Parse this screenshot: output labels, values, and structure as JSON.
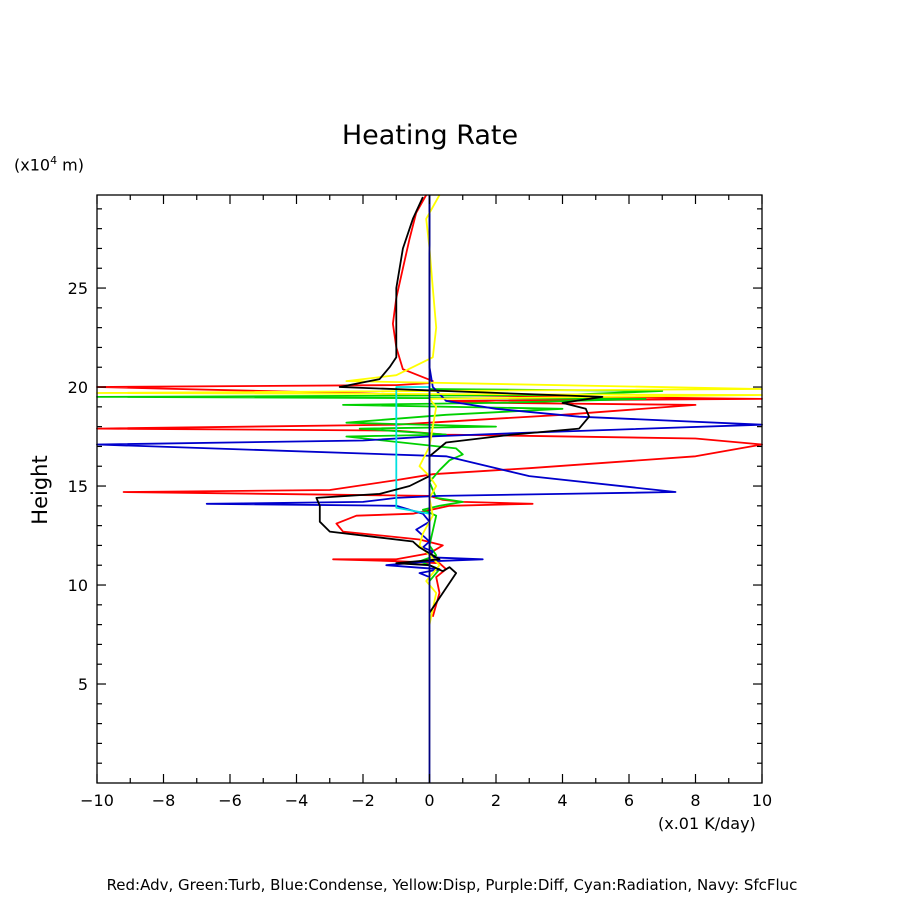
{
  "chart_data": {
    "type": "line",
    "title": "Heating Rate",
    "xlabel": "(x.01 K/day)",
    "ylabel": "Height",
    "y_unit_base": "(x10",
    "y_unit_exp": "4",
    "y_unit_tail": " m)",
    "xlim": [
      -10,
      10
    ],
    "ylim": [
      0,
      29.7
    ],
    "x_ticks": [
      -10,
      -8,
      -6,
      -4,
      -2,
      0,
      2,
      4,
      6,
      8,
      10
    ],
    "x_tick_labels": [
      "−10",
      "−8",
      "−6",
      "−4",
      "−2",
      "0",
      "2",
      "4",
      "6",
      "8",
      "10"
    ],
    "y_ticks": [
      5,
      10,
      15,
      20,
      25
    ],
    "y_tick_labels": [
      "5",
      "10",
      "15",
      "20",
      "25"
    ],
    "grid": false,
    "legend_text": "Red:Adv, Green:Turb, Blue:Condense, Yellow:Disp, Purple:Diff, Cyan:Radiation, Navy: SfcFluc",
    "series": [
      {
        "name": "Adv",
        "color": "#ff0000",
        "points": [
          [
            0.1,
            8.4
          ],
          [
            0.3,
            9.6
          ],
          [
            0.2,
            10.4
          ],
          [
            0.5,
            10.8
          ],
          [
            0.3,
            11.1
          ],
          [
            -0.9,
            11.2
          ],
          [
            -2.9,
            11.3
          ],
          [
            -1.0,
            11.3
          ],
          [
            0.0,
            11.6
          ],
          [
            0.4,
            12.0
          ],
          [
            -0.3,
            12.3
          ],
          [
            -2.6,
            12.7
          ],
          [
            -2.8,
            13.1
          ],
          [
            -2.2,
            13.5
          ],
          [
            -0.5,
            13.6
          ],
          [
            0.6,
            14.0
          ],
          [
            3.1,
            14.1
          ],
          [
            1.0,
            14.2
          ],
          [
            0.4,
            14.3
          ],
          [
            0.0,
            14.5
          ],
          [
            -9.2,
            14.7
          ],
          [
            -3.0,
            14.8
          ],
          [
            -1.0,
            15.3
          ],
          [
            0.1,
            15.6
          ],
          [
            3.0,
            15.9
          ],
          [
            8.0,
            16.5
          ],
          [
            10.0,
            17.1
          ],
          [
            8.0,
            17.4
          ],
          [
            0.5,
            17.6
          ],
          [
            -1.0,
            17.8
          ],
          [
            -10.0,
            17.9
          ],
          [
            -1.0,
            18.1
          ],
          [
            2.0,
            18.4
          ],
          [
            4.0,
            18.6
          ],
          [
            8.0,
            19.1
          ],
          [
            2.0,
            19.2
          ],
          [
            0.5,
            19.3
          ],
          [
            10.0,
            19.4
          ],
          [
            0.0,
            19.6
          ],
          [
            -10.0,
            20.0
          ],
          [
            -1.0,
            20.1
          ],
          [
            0.0,
            20.2
          ],
          [
            0.1,
            20.3
          ],
          [
            -0.8,
            20.9
          ],
          [
            -1.0,
            22.0
          ],
          [
            -1.1,
            23.2
          ],
          [
            -1.0,
            24.5
          ],
          [
            -0.8,
            26.0
          ],
          [
            -0.6,
            27.5
          ],
          [
            -0.4,
            28.8
          ],
          [
            -0.1,
            29.7
          ]
        ]
      },
      {
        "name": "Turb",
        "color": "#00d000",
        "points": [
          [
            0.0,
            10.2
          ],
          [
            0.3,
            10.8
          ],
          [
            -0.3,
            11.2
          ],
          [
            0.2,
            11.5
          ],
          [
            0.0,
            12.0
          ],
          [
            0.2,
            13.5
          ],
          [
            -0.2,
            13.8
          ],
          [
            0.3,
            14.0
          ],
          [
            1.0,
            14.2
          ],
          [
            0.2,
            14.4
          ],
          [
            0.0,
            15.2
          ],
          [
            0.3,
            15.8
          ],
          [
            0.6,
            16.3
          ],
          [
            1.0,
            16.6
          ],
          [
            0.8,
            16.9
          ],
          [
            -2.5,
            17.5
          ],
          [
            0.5,
            17.6
          ],
          [
            -2.1,
            17.9
          ],
          [
            2.0,
            18.0
          ],
          [
            -2.5,
            18.2
          ],
          [
            0.5,
            18.6
          ],
          [
            4.0,
            18.9
          ],
          [
            -2.6,
            19.1
          ],
          [
            2.0,
            19.2
          ],
          [
            6.5,
            19.4
          ],
          [
            -10.0,
            19.5
          ],
          [
            4.0,
            19.6
          ],
          [
            7.0,
            19.8
          ],
          [
            0.0,
            19.9
          ]
        ]
      },
      {
        "name": "Condense",
        "color": "#0000cc",
        "points": [
          [
            0.0,
            10.4
          ],
          [
            -0.3,
            10.6
          ],
          [
            0.3,
            10.8
          ],
          [
            -1.3,
            11.0
          ],
          [
            0.0,
            11.2
          ],
          [
            1.6,
            11.3
          ],
          [
            0.0,
            11.4
          ],
          [
            0.1,
            11.7
          ],
          [
            -0.2,
            11.9
          ],
          [
            0.0,
            12.2
          ],
          [
            -0.4,
            12.8
          ],
          [
            0.0,
            13.2
          ],
          [
            -0.2,
            13.6
          ],
          [
            -1.0,
            14.0
          ],
          [
            -6.7,
            14.1
          ],
          [
            -2.0,
            14.2
          ],
          [
            -1.0,
            14.4
          ],
          [
            0.3,
            14.5
          ],
          [
            4.0,
            14.6
          ],
          [
            7.4,
            14.7
          ],
          [
            3.0,
            15.5
          ],
          [
            0.5,
            16.5
          ],
          [
            -10.0,
            17.1
          ],
          [
            -2.0,
            17.3
          ],
          [
            0.0,
            17.5
          ],
          [
            3.0,
            17.7
          ],
          [
            10.0,
            18.1
          ],
          [
            4.5,
            18.5
          ],
          [
            2.0,
            18.9
          ],
          [
            0.5,
            19.3
          ],
          [
            0.1,
            20.0
          ],
          [
            0.0,
            21.0
          ],
          [
            0.0,
            29.7
          ]
        ]
      },
      {
        "name": "Disp",
        "color": "#ffff00",
        "points": [
          [
            0.0,
            8.0
          ],
          [
            0.2,
            9.6
          ],
          [
            -0.1,
            10.2
          ],
          [
            0.3,
            11.0
          ],
          [
            -0.3,
            12.0
          ],
          [
            -0.2,
            12.6
          ],
          [
            0.1,
            13.5
          ],
          [
            0.0,
            14.4
          ],
          [
            0.2,
            15.0
          ],
          [
            0.0,
            15.5
          ],
          [
            -0.3,
            16.0
          ],
          [
            0.0,
            17.0
          ],
          [
            0.2,
            19.0
          ],
          [
            0.0,
            19.4
          ],
          [
            10.0,
            19.6
          ],
          [
            -10.0,
            19.7
          ],
          [
            10.0,
            19.9
          ],
          [
            -2.5,
            20.3
          ],
          [
            -1.0,
            20.6
          ],
          [
            0.1,
            21.5
          ],
          [
            0.2,
            23.0
          ],
          [
            0.1,
            25.0
          ],
          [
            0.0,
            27.0
          ],
          [
            -0.1,
            28.5
          ],
          [
            0.3,
            29.7
          ]
        ]
      },
      {
        "name": "Radiation",
        "color": "#00e0e0",
        "points": [
          [
            0.0,
            13.6
          ],
          [
            -1.0,
            13.9
          ],
          [
            -1.0,
            20.0
          ],
          [
            0.0,
            20.0
          ]
        ]
      },
      {
        "name": "",
        "color": "#000000",
        "points": [
          [
            0.0,
            8.6
          ],
          [
            0.8,
            10.6
          ],
          [
            0.6,
            10.9
          ],
          [
            0.4,
            10.7
          ],
          [
            0.0,
            11.0
          ],
          [
            -1.0,
            11.1
          ],
          [
            0.3,
            11.3
          ],
          [
            0.0,
            11.6
          ],
          [
            -0.3,
            11.9
          ],
          [
            -0.5,
            12.2
          ],
          [
            -3.0,
            12.7
          ],
          [
            -3.3,
            13.2
          ],
          [
            -3.3,
            14.0
          ],
          [
            -3.4,
            14.4
          ],
          [
            -1.5,
            14.6
          ],
          [
            -0.6,
            15.0
          ],
          [
            0.0,
            15.5
          ],
          [
            0.0,
            16.5
          ],
          [
            0.5,
            17.2
          ],
          [
            2.5,
            17.6
          ],
          [
            4.5,
            17.9
          ],
          [
            4.8,
            18.5
          ],
          [
            4.7,
            18.9
          ],
          [
            4.0,
            19.2
          ],
          [
            5.2,
            19.5
          ],
          [
            -2.7,
            20.0
          ],
          [
            -1.5,
            20.4
          ],
          [
            -1.2,
            21.0
          ],
          [
            -1.0,
            21.5
          ],
          [
            -1.0,
            23.0
          ],
          [
            -1.0,
            25.0
          ],
          [
            -0.8,
            27.0
          ],
          [
            -0.5,
            28.5
          ],
          [
            -0.2,
            29.6
          ]
        ]
      }
    ]
  }
}
